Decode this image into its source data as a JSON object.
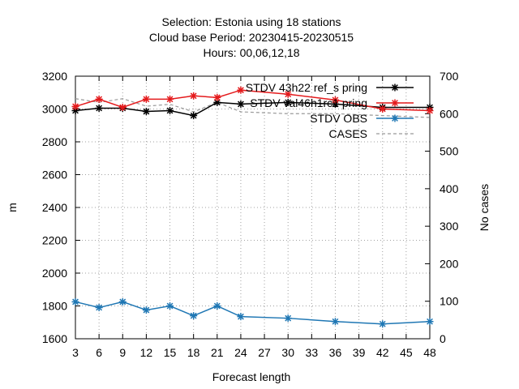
{
  "chart_data": {
    "type": "line",
    "title_lines": [
      "Selection: Estonia using    18 stations",
      "Cloud base   Period: 20230415-20230515",
      "Hours:  00,06,12,18"
    ],
    "xlabel": "Forecast length",
    "ylabel": "m",
    "y2label": "No cases",
    "x_ticks": [
      3,
      6,
      9,
      12,
      15,
      18,
      21,
      24,
      27,
      30,
      33,
      36,
      39,
      42,
      45,
      48
    ],
    "y_ticks": [
      1600,
      1800,
      2000,
      2200,
      2400,
      2600,
      2800,
      3000,
      3200
    ],
    "y2_ticks": [
      0,
      100,
      200,
      300,
      400,
      500,
      600,
      700
    ],
    "xlim": [
      3,
      48
    ],
    "ylim": [
      1600,
      3200
    ],
    "y2lim": [
      0,
      700
    ],
    "grid": true,
    "legend_position": "top-right",
    "series": [
      {
        "name": "STDV 43h22 ref_s pring",
        "color": "#000000",
        "marker": "star",
        "axis": "y1",
        "x": [
          3,
          6,
          9,
          12,
          15,
          18,
          21,
          24,
          30,
          36,
          42,
          48
        ],
        "y": [
          2990,
          3005,
          3005,
          2985,
          2990,
          2960,
          3040,
          3030,
          3040,
          3030,
          3010,
          3010
        ]
      },
      {
        "name": "STDV val46h1rc1 pring",
        "color": "#e41a1c",
        "marker": "star",
        "axis": "y1",
        "x": [
          3,
          6,
          9,
          12,
          15,
          18,
          21,
          24,
          30,
          36,
          42,
          48
        ],
        "y": [
          3015,
          3060,
          3010,
          3060,
          3060,
          3080,
          3070,
          3115,
          3090,
          3055,
          3000,
          2990
        ]
      },
      {
        "name": "STDV OBS",
        "color": "#1f77b4",
        "marker": "star",
        "axis": "y1",
        "x": [
          3,
          6,
          9,
          12,
          15,
          18,
          21,
          24,
          30,
          36,
          42,
          48
        ],
        "y": [
          1825,
          1790,
          1825,
          1775,
          1800,
          1740,
          1800,
          1735,
          1725,
          1705,
          1690,
          1705
        ]
      },
      {
        "name": "CASES",
        "color": "#999999",
        "dashed": true,
        "axis": "y2",
        "x": [
          3,
          6,
          9,
          12,
          15,
          18,
          21,
          24,
          30,
          36,
          42,
          48
        ],
        "y": [
          640,
          630,
          640,
          620,
          625,
          605,
          630,
          605,
          600,
          600,
          595,
          590
        ]
      }
    ]
  }
}
